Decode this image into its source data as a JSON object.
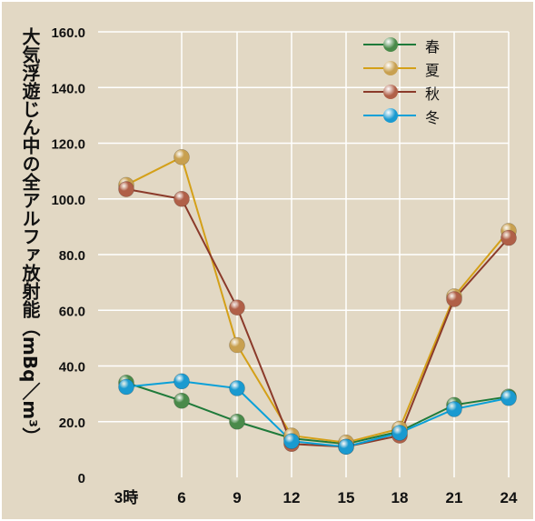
{
  "chart_data": {
    "type": "line",
    "ylabel": "大気浮遊じん中の全アルファ放射能（mBq／m³）",
    "x": [
      "3時",
      "6",
      "9",
      "12",
      "15",
      "18",
      "21",
      "24"
    ],
    "ylim": [
      0,
      160
    ],
    "y_ticks": [
      "0",
      "20.0",
      "40.0",
      "60.0",
      "80.0",
      "100.0",
      "120.0",
      "140.0",
      "160.0"
    ],
    "grid": true,
    "legend_position": "top-right",
    "series": [
      {
        "name": "春",
        "color": "#1f7a3a",
        "marker": "#4a8a4a",
        "values": [
          34,
          27.5,
          20,
          14,
          12,
          16.5,
          26,
          29
        ]
      },
      {
        "name": "夏",
        "color": "#d4a018",
        "marker": "#c8a050",
        "values": [
          105,
          115,
          47.5,
          15,
          12.5,
          17.5,
          65,
          88.5
        ]
      },
      {
        "name": "秋",
        "color": "#8b3a2a",
        "marker": "#b06048",
        "values": [
          103.5,
          100,
          61,
          12,
          11,
          15,
          64,
          86
        ]
      },
      {
        "name": "冬",
        "color": "#0aa0d8",
        "marker": "#1a9ad0",
        "values": [
          32.5,
          34.5,
          32,
          13,
          11,
          16,
          24.5,
          28.5
        ]
      }
    ]
  }
}
